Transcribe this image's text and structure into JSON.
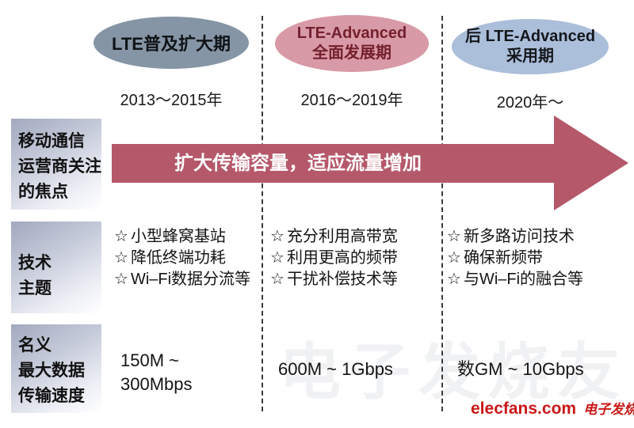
{
  "diagram": {
    "phases": [
      {
        "bubble": {
          "line1": "LTE普及扩大期"
        },
        "bubble_color": "#8695a5",
        "period": "2013～2015年",
        "topics": [
          {
            "bullet": "☆",
            "text": "小型蜂窝基站"
          },
          {
            "bullet": "☆",
            "text": "降低终端功耗"
          },
          {
            "bullet": "☆",
            "text": "Wi–Fi数据分流等"
          }
        ],
        "speed": {
          "line1": "150M ~",
          "line2": "300Mbps"
        }
      },
      {
        "bubble": {
          "line1": "LTE-Advanced",
          "line2": "全面发展期"
        },
        "bubble_color": "#d89aa6",
        "period": "2016～2019年",
        "topics": [
          {
            "bullet": "☆",
            "text": "充分利用高带宽"
          },
          {
            "bullet": "☆",
            "text": "利用更高的频带"
          },
          {
            "bullet": "☆",
            "text": "干扰补偿技术等"
          }
        ],
        "speed": {
          "line1": "600M ~ 1Gbps"
        }
      },
      {
        "bubble": {
          "line1": "后 LTE-Advanced",
          "line2": "采用期"
        },
        "bubble_color": "#abbeda",
        "period": "2020年～",
        "topics": [
          {
            "bullet": "☆",
            "text": "新多路访问技术"
          },
          {
            "bullet": "☆",
            "text": "确保新频带"
          },
          {
            "bullet": "☆",
            "text": "与Wi–Fi的融合等"
          }
        ],
        "speed": {
          "line1": "数GM ~ 10Gbps"
        }
      }
    ],
    "row_labels": {
      "focus": {
        "line1": "移动通信",
        "line2": "运营商关注",
        "line3": "的焦点"
      },
      "topics": {
        "line1": "技术",
        "line2": "主题"
      },
      "speed": {
        "line1": "名义",
        "line2": "最大数据",
        "line3": "传输速度"
      }
    },
    "arrow": {
      "label": "扩大传输容量，适应流量增加",
      "color": "#b5586a"
    },
    "watermark": {
      "site": "elecfans.com",
      "brand_cn": "电子发烧友",
      "color": "#c91717",
      "ghost_text": "电子发烧友"
    }
  }
}
